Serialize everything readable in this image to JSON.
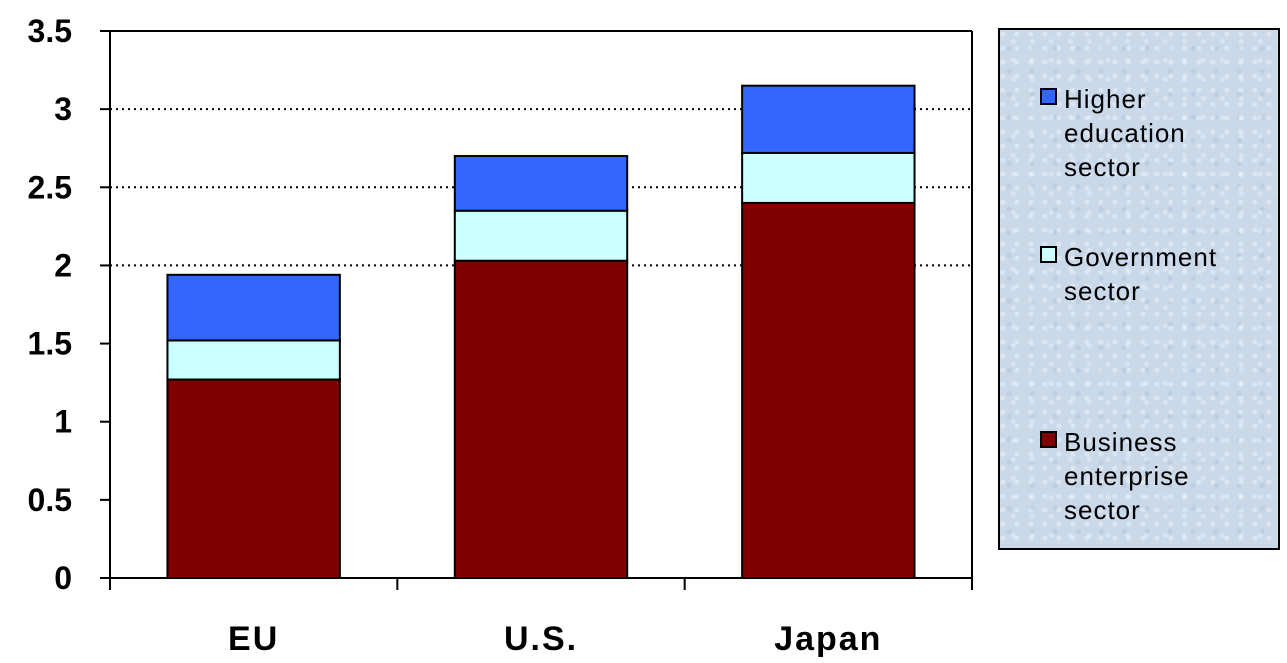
{
  "chart_data": {
    "type": "bar",
    "stacked": true,
    "categories": [
      "EU",
      "U.S.",
      "Japan"
    ],
    "series": [
      {
        "name": "Business enterprise sector",
        "values": [
          1.27,
          2.03,
          2.4
        ],
        "color": "#800000"
      },
      {
        "name": "Government sector",
        "values": [
          0.25,
          0.32,
          0.32
        ],
        "color": "#ccffff"
      },
      {
        "name": "Higher education sector",
        "values": [
          0.42,
          0.35,
          0.43
        ],
        "color": "#3366ff"
      }
    ],
    "yticks": [
      "0",
      "0.5",
      "1",
      "1.5",
      "2",
      "2.5",
      "3",
      "3.5"
    ],
    "ylim": [
      0,
      3.5
    ],
    "gridlines": [
      2,
      2.5,
      3
    ],
    "title": "",
    "xlabel": "",
    "ylabel": "",
    "legend_position": "right"
  },
  "legend": {
    "items": [
      {
        "label": "Higher education sector",
        "color": "#3366ff"
      },
      {
        "label": "Government sector",
        "color": "#ccffff"
      },
      {
        "label": "Business enterprise sector",
        "color": "#800000"
      }
    ]
  }
}
